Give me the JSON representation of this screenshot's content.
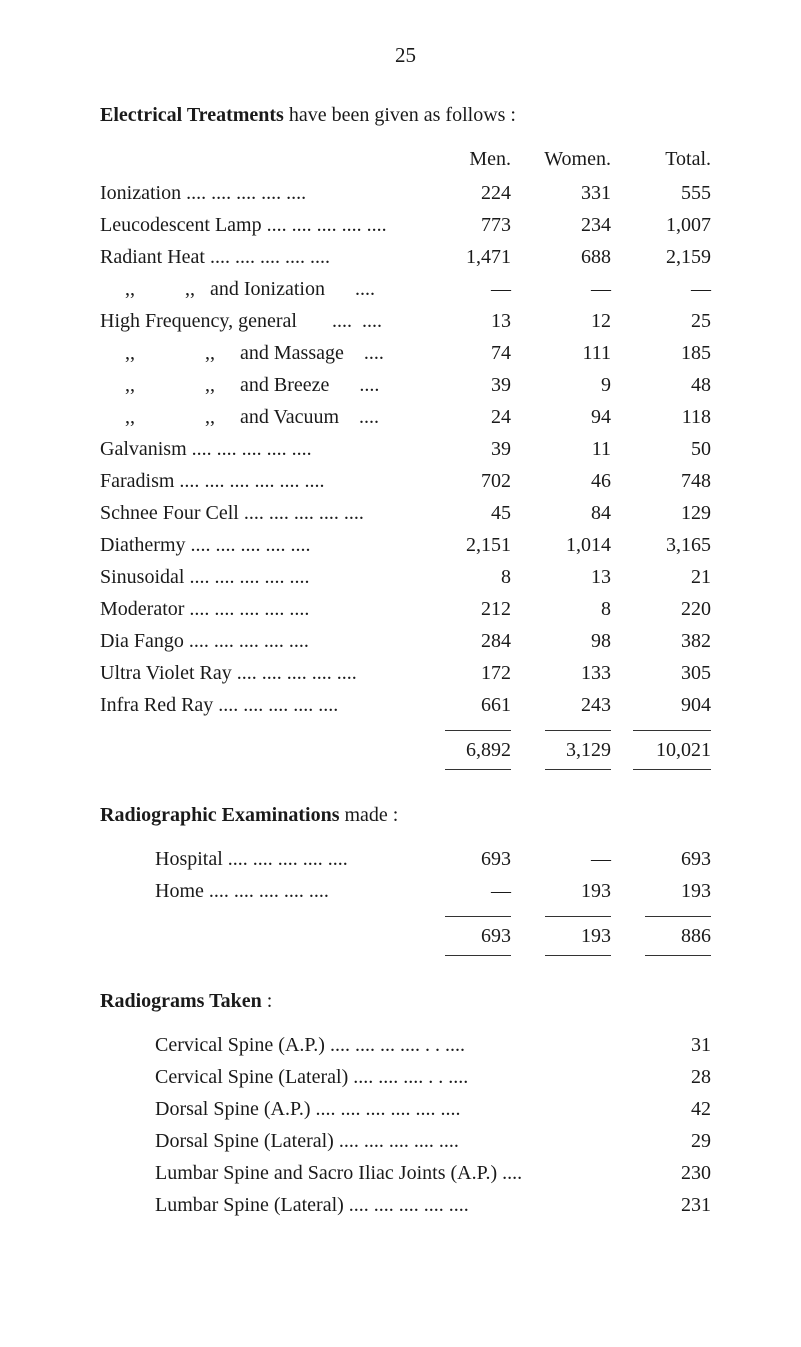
{
  "page_number": "25",
  "sections": {
    "electrical": {
      "title_bold": "Electrical Treatments",
      "title_rest": " have been given as follows :",
      "headers": [
        "Men.",
        "Women.",
        "Total."
      ],
      "rows": [
        {
          "label": "Ionization",
          "dots": true,
          "men": "224",
          "women": "331",
          "total": "555"
        },
        {
          "label": "Leucodescent Lamp",
          "dots": true,
          "men": "773",
          "women": "234",
          "total": "1,007"
        },
        {
          "label": "Radiant Heat",
          "dots": true,
          "men": "1,471",
          "women": "688",
          "total": "2,159"
        },
        {
          "label": "     ,,          ,,   and Ionization      ....",
          "dots": false,
          "men": "—",
          "women": "—",
          "total": "—"
        },
        {
          "label": "High Frequency, general       ....  ....",
          "dots": false,
          "men": "13",
          "women": "12",
          "total": "25"
        },
        {
          "label": "     ,,              ,,     and Massage    ....",
          "dots": false,
          "men": "74",
          "women": "111",
          "total": "185"
        },
        {
          "label": "     ,,              ,,     and Breeze      ....",
          "dots": false,
          "men": "39",
          "women": "9",
          "total": "48"
        },
        {
          "label": "     ,,              ,,     and Vacuum    ....",
          "dots": false,
          "men": "24",
          "women": "94",
          "total": "118"
        },
        {
          "label": "Galvanism",
          "dots": true,
          "men": "39",
          "women": "11",
          "total": "50"
        },
        {
          "label": "Faradism  ....",
          "dots": true,
          "men": "702",
          "women": "46",
          "total": "748"
        },
        {
          "label": "Schnee Four Cell",
          "dots": true,
          "men": "45",
          "women": "84",
          "total": "129"
        },
        {
          "label": "Diathermy",
          "dots": true,
          "men": "2,151",
          "women": "1,014",
          "total": "3,165"
        },
        {
          "label": "Sinusoidal",
          "dots": true,
          "men": "8",
          "women": "13",
          "total": "21"
        },
        {
          "label": "Moderator",
          "dots": true,
          "men": "212",
          "women": "8",
          "total": "220"
        },
        {
          "label": "Dia Fango",
          "dots": true,
          "men": "284",
          "women": "98",
          "total": "382"
        },
        {
          "label": "Ultra Violet Ray",
          "dots": true,
          "men": "172",
          "women": "133",
          "total": "305"
        },
        {
          "label": "Infra Red Ray",
          "dots": true,
          "men": "661",
          "women": "243",
          "total": "904"
        }
      ],
      "totals": {
        "men": "6,892",
        "women": "3,129",
        "total": "10,021"
      }
    },
    "radiographic": {
      "title_bold": "Radiographic Examinations",
      "title_rest": " made :",
      "rows": [
        {
          "label": "Hospital",
          "men": "693",
          "women": "—",
          "total": "693"
        },
        {
          "label": "Home",
          "men": "—",
          "women": "193",
          "total": "193"
        }
      ],
      "totals": {
        "men": "693",
        "women": "193",
        "total": "886"
      }
    },
    "radiograms": {
      "title_bold": "Radiograms Taken",
      "title_rest": " :",
      "rows": [
        {
          "label": "Cervical Spine (A.P.)  ....  ....  ...  ....  . .  ....",
          "value": "31"
        },
        {
          "label": "Cervical Spine (Lateral)      ....  ....  ....  . .  ....",
          "value": "28"
        },
        {
          "label": "Dorsal Spine (A.P.)      ....  ....  ....  ....  ....  ....",
          "value": "42"
        },
        {
          "label": "Dorsal Spine (Lateral)        ....  ....  ....  ....  ....",
          "value": "29"
        },
        {
          "label": "Lumbar Spine and Sacro Iliac Joints (A.P.)  ....",
          "value": "230"
        },
        {
          "label": "Lumbar Spine (Lateral)      ....  ....  ....  ....  ....",
          "value": "231"
        }
      ]
    }
  }
}
